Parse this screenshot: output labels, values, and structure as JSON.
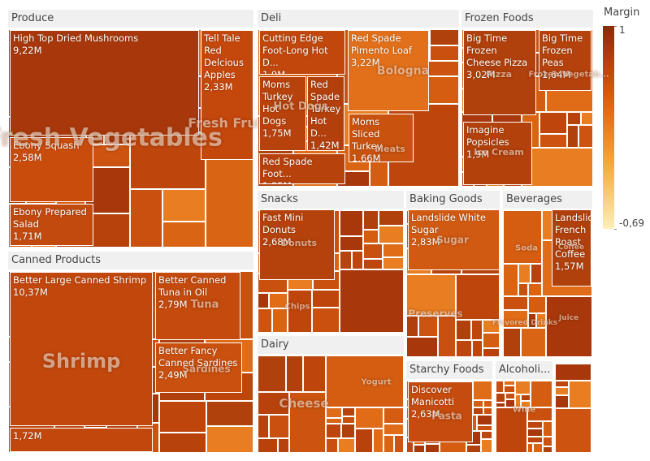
{
  "chart_data": {
    "type": "treemap",
    "colorbar": {
      "title": "Margin",
      "ticks": [
        1,
        {
          "value": -0.69,
          "label": "-0,69"
        }
      ],
      "colors": [
        "#8b2a0a",
        "#d9580f",
        "#f4a53a",
        "#fdf0b8"
      ]
    },
    "groups": [
      {
        "name": "Produce",
        "subcategories": [
          "Fresh Vegetables",
          "Fresh Fruit"
        ],
        "items": [
          {
            "name": "High Top Dried Mushrooms",
            "value": 9.22,
            "value_label": "9,22M",
            "color": "#a8380b"
          },
          {
            "name": "Tell Tale Red Delcious Apples",
            "value": 2.33,
            "value_label": "2,33M",
            "color": "#c4470c"
          },
          {
            "name": "Ebony Squash",
            "value": 2.58,
            "value_label": "2,58M",
            "color": "#c94c0d"
          },
          {
            "name": "Ebony Prepared Salad",
            "value": 1.71,
            "value_label": "1,71M",
            "color": "#c24a0e"
          }
        ]
      },
      {
        "name": "Canned Products",
        "subcategories": [
          "Shrimp",
          "Tuna",
          "Sardines"
        ],
        "items": [
          {
            "name": "Better Large Canned Shrimp",
            "value": 10.37,
            "value_label": "10,37M",
            "color": "#c2470d"
          },
          {
            "name": "Better Canned Tuna in Oil",
            "value": 2.79,
            "value_label": "2,79M",
            "color": "#c44a0d"
          },
          {
            "name": "Better Fancy Canned Sardines",
            "value": 2.49,
            "value_label": "2,49M",
            "color": "#c9500f"
          },
          {
            "name": null,
            "value": 1.72,
            "value_label": "1,72M",
            "color": "#c2470d"
          }
        ]
      },
      {
        "name": "Deli",
        "subcategories": [
          "Bologna",
          "Hot Dogs",
          "Meats"
        ],
        "items": [
          {
            "name": "Cutting Edge Foot-Long Hot D...",
            "value": 1.9,
            "value_label": "1,9M",
            "color": "#c1470d"
          },
          {
            "name": "Red Spade Pimento Loaf",
            "value": 3.22,
            "value_label": "3,22M",
            "color": "#e2701a"
          },
          {
            "name": "Moms Turkey Hot Dogs",
            "value": 1.75,
            "value_label": "1,75M",
            "color": "#b8420c"
          },
          {
            "name": "Red Spade Turkey Hot D...",
            "value": 1.42,
            "value_label": "1,42M",
            "color": "#b3400c"
          },
          {
            "name": "Moms Sliced Turkey",
            "value": 1.66,
            "value_label": "1,66M",
            "color": "#c9520f"
          },
          {
            "name": "Red Spade Foot...",
            "value": 1.35,
            "value_label": "1,35M",
            "color": "#b8420c"
          }
        ]
      },
      {
        "name": "Frozen Foods",
        "subcategories": [
          "Pizza",
          "Frozen Vegetab...",
          "Ice Cream"
        ],
        "items": [
          {
            "name": "Big Time Frozen Cheese Pizza",
            "value": 3.02,
            "value_label": "3,02M",
            "color": "#b0400c"
          },
          {
            "name": "Big Time Frozen Peas",
            "value": 1.64,
            "value_label": "1,64M",
            "color": "#b5420c"
          },
          {
            "name": "Imagine Popsicles",
            "value": 1.9,
            "value_label": "1,9M",
            "color": "#b3410c"
          }
        ]
      },
      {
        "name": "Snacks",
        "subcategories": [
          "Donuts",
          "Chips"
        ],
        "items": [
          {
            "name": "Fast Mini Donuts",
            "value": 2.68,
            "value_label": "2,68M",
            "color": "#b5420c"
          }
        ]
      },
      {
        "name": "Dairy",
        "subcategories": [
          "Cheese",
          "Yogurt"
        ],
        "items": []
      },
      {
        "name": "Baking Goods",
        "subcategories": [
          "Sugar",
          "Preserves"
        ],
        "items": [
          {
            "name": "Landslide White Sugar",
            "value": 2.83,
            "value_label": "2,83M",
            "color": "#d15a12"
          }
        ]
      },
      {
        "name": "Beverages",
        "subcategories": [
          "Soda",
          "Coffee",
          "Flavored Drinks",
          "Juice"
        ],
        "items": [
          {
            "name": "Landslide French Roast Coffee",
            "value": 1.57,
            "value_label": "1,57M",
            "color": "#b0400c"
          }
        ]
      },
      {
        "name": "Starchy Foods",
        "subcategories": [
          "Pasta"
        ],
        "items": [
          {
            "name": "Discover Manicotti",
            "value": 2.63,
            "value_label": "2,63M",
            "color": "#c54b0e"
          }
        ]
      },
      {
        "name": "Alcoholi...",
        "subcategories": [
          "Wine"
        ],
        "items": []
      }
    ]
  }
}
